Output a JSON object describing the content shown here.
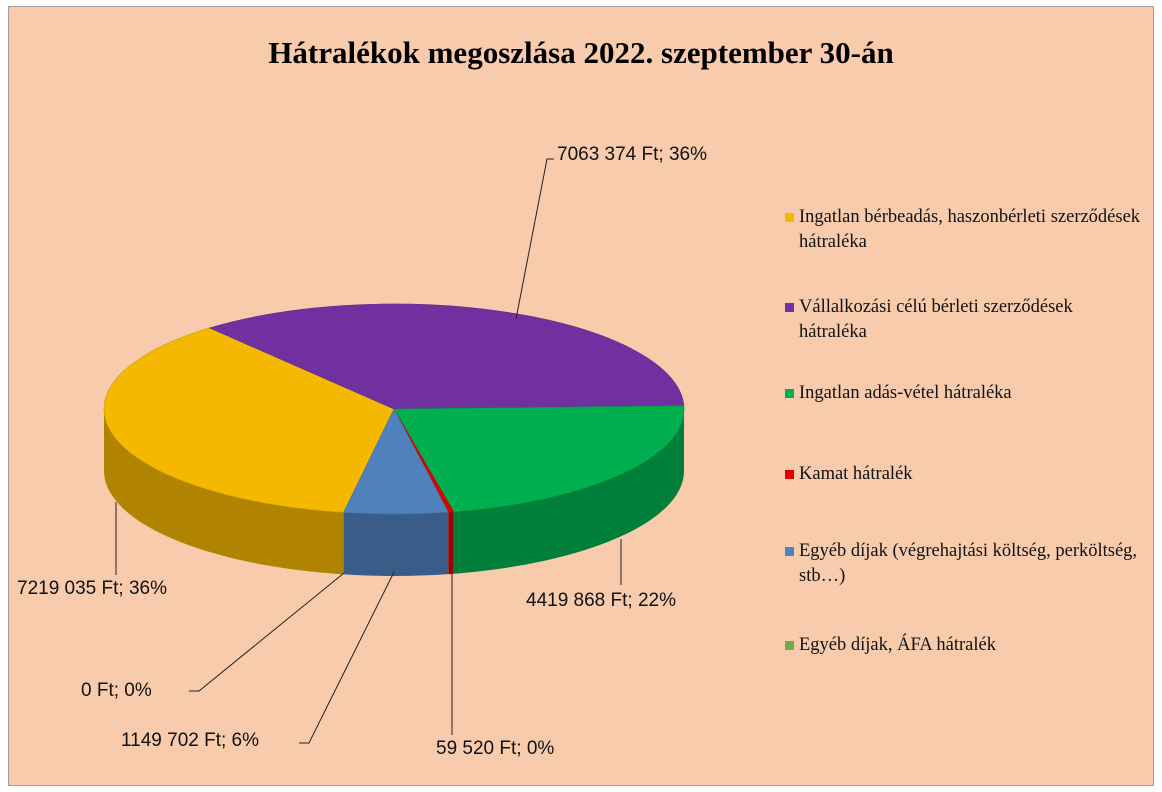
{
  "chart_data": {
    "type": "pie",
    "title": "Hátralékok megoszlása 2022. szeptember 30-án",
    "categories": [
      "Ingatlan bérbeadás, haszonbérleti szerződések hátraléka",
      "Vállalkozási célú bérleti szerződések hátraléka",
      "Ingatlan adás-vétel hátraléka",
      "Kamat hátralék",
      "Egyéb díjak (végrehajtási költség, perköltség, stb…)",
      "Egyéb díjak, ÁFA hátralék"
    ],
    "values": [
      7219035,
      7063374,
      4419868,
      59520,
      1149702,
      0
    ],
    "value_labels": [
      "7219 035 Ft; 36%",
      "7063 374 Ft; 36%",
      "4419 868 Ft; 22%",
      "59 520 Ft; 0%",
      "1149 702 Ft; 6%",
      "0 Ft; 0%"
    ],
    "colors": [
      "#f5b800",
      "#7030a0",
      "#00b050",
      "#e00000",
      "#4f81bd",
      "#70ad47"
    ],
    "legend": "right"
  }
}
